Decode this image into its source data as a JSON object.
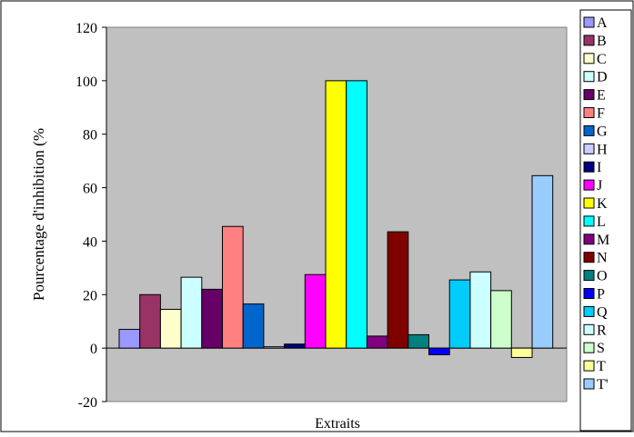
{
  "chart_data": {
    "type": "bar",
    "categories": [
      "Extraits"
    ],
    "xlabel": "Extraits",
    "ylabel": "Pourcentage d'inhibition (%",
    "ylim": [
      -20,
      120
    ],
    "yticks": [
      -20,
      0,
      20,
      40,
      60,
      80,
      100,
      120
    ],
    "grid": false,
    "legend": "right",
    "series": [
      {
        "name": "A",
        "values": [
          7
        ],
        "color": "#9999FF"
      },
      {
        "name": "B",
        "values": [
          20
        ],
        "color": "#993366"
      },
      {
        "name": "C",
        "values": [
          14.5
        ],
        "color": "#FFFFCC"
      },
      {
        "name": "D",
        "values": [
          26.5
        ],
        "color": "#CCFFFF"
      },
      {
        "name": "E",
        "values": [
          22
        ],
        "color": "#660066"
      },
      {
        "name": "F",
        "values": [
          45.5
        ],
        "color": "#FF8080"
      },
      {
        "name": "G",
        "values": [
          16.5
        ],
        "color": "#0066CC"
      },
      {
        "name": "H",
        "values": [
          0.5
        ],
        "color": "#CCCCFF"
      },
      {
        "name": "I",
        "values": [
          1.5
        ],
        "color": "#000080"
      },
      {
        "name": "J",
        "values": [
          27.5
        ],
        "color": "#FF00FF"
      },
      {
        "name": "K",
        "values": [
          100
        ],
        "color": "#FFFF00"
      },
      {
        "name": "L",
        "values": [
          100
        ],
        "color": "#00FFFF"
      },
      {
        "name": "M",
        "values": [
          4.5
        ],
        "color": "#800080"
      },
      {
        "name": "N",
        "values": [
          43.5
        ],
        "color": "#800000"
      },
      {
        "name": "O",
        "values": [
          5
        ],
        "color": "#008080"
      },
      {
        "name": "P",
        "values": [
          -2.5
        ],
        "color": "#0000FF"
      },
      {
        "name": "Q",
        "values": [
          25.5
        ],
        "color": "#00CCFF"
      },
      {
        "name": "R",
        "values": [
          28.5
        ],
        "color": "#CCFFFF"
      },
      {
        "name": "S",
        "values": [
          21.5
        ],
        "color": "#CCFFCC"
      },
      {
        "name": "T",
        "values": [
          -3.5
        ],
        "color": "#FFFF99"
      },
      {
        "name": "T'",
        "values": [
          64.5
        ],
        "color": "#99CCFF"
      }
    ]
  },
  "colors": {
    "plot_background": "#C0C0C0",
    "page_background": "#FFFFFF",
    "axis": "#000000"
  }
}
